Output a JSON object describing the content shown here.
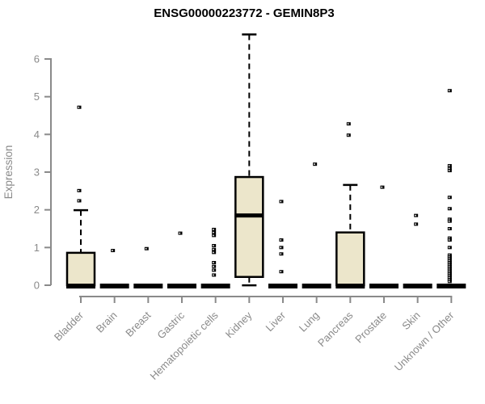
{
  "chart_data": {
    "type": "boxplot",
    "title": "ENSG00000223772 - GEMIN8P3",
    "xlabel": "",
    "ylabel": "Expression",
    "ylim": [
      0,
      6.8
    ],
    "yticks": [
      0,
      1,
      2,
      3,
      4,
      5,
      6
    ],
    "grid": false,
    "legend": "none",
    "box_fill_color": "#ece6cb",
    "box_border_color": "#000000",
    "axis_color": "#8a8a8a",
    "text_color": "#8a8a8a",
    "title_color": "#000000",
    "categories": [
      "Bladder",
      "Brain",
      "Breast",
      "Gastric",
      "Hematopoietic cells",
      "Kidney",
      "Liver",
      "Lung",
      "Pancreas",
      "Prostate",
      "Skin",
      "Unknown / Other"
    ],
    "boxes": [
      {
        "category": "Bladder",
        "q1": 0,
        "median": 0.02,
        "q3": 0.86,
        "whisker_low": 0,
        "whisker_high": 1.99,
        "outliers": [
          2.24,
          2.51,
          4.72
        ]
      },
      {
        "category": "Brain",
        "q1": 0,
        "median": 0,
        "q3": 0,
        "whisker_low": 0,
        "whisker_high": 0,
        "outliers": [
          0.92
        ]
      },
      {
        "category": "Breast",
        "q1": 0,
        "median": 0,
        "q3": 0,
        "whisker_low": 0,
        "whisker_high": 0,
        "outliers": [
          0.97
        ]
      },
      {
        "category": "Gastric",
        "q1": 0,
        "median": 0,
        "q3": 0,
        "whisker_low": 0,
        "whisker_high": 0,
        "outliers": [
          1.38
        ]
      },
      {
        "category": "Hematopoietic cells",
        "q1": 0,
        "median": 0,
        "q3": 0,
        "whisker_low": 0,
        "whisker_high": 0,
        "outliers": [
          1.48,
          1.4,
          1.32,
          1.05,
          0.95,
          0.87,
          0.6,
          0.5,
          0.4,
          0.27
        ]
      },
      {
        "category": "Kidney",
        "q1": 0.22,
        "median": 1.85,
        "q3": 2.87,
        "whisker_low": 0.02,
        "whisker_high": 6.65,
        "outliers": []
      },
      {
        "category": "Liver",
        "q1": 0,
        "median": 0,
        "q3": 0,
        "whisker_low": 0,
        "whisker_high": 0,
        "outliers": [
          2.22,
          1.2,
          1.0,
          0.83,
          0.36
        ]
      },
      {
        "category": "Lung",
        "q1": 0,
        "median": 0,
        "q3": 0,
        "whisker_low": 0,
        "whisker_high": 0,
        "outliers": [
          3.21
        ]
      },
      {
        "category": "Pancreas",
        "q1": 0,
        "median": 0.02,
        "q3": 1.4,
        "whisker_low": 0,
        "whisker_high": 2.66,
        "outliers": [
          3.98,
          4.28
        ]
      },
      {
        "category": "Prostate",
        "q1": 0,
        "median": 0,
        "q3": 0,
        "whisker_low": 0,
        "whisker_high": 0,
        "outliers": [
          2.6
        ]
      },
      {
        "category": "Skin",
        "q1": 0,
        "median": 0,
        "q3": 0,
        "whisker_low": 0,
        "whisker_high": 0,
        "outliers": [
          1.85,
          1.62
        ]
      },
      {
        "category": "Unknown / Other",
        "q1": 0,
        "median": 0,
        "q3": 0,
        "whisker_low": 0,
        "whisker_high": 0,
        "outliers": [
          5.16,
          3.17,
          3.1,
          3.04,
          2.33,
          2.03,
          1.75,
          1.7,
          1.5,
          1.25,
          1.2,
          1.0,
          0.8,
          0.75,
          0.7,
          0.65,
          0.6,
          0.55,
          0.5,
          0.45,
          0.4,
          0.35,
          0.3,
          0.25,
          0.2,
          0.15,
          0.1
        ]
      }
    ]
  }
}
